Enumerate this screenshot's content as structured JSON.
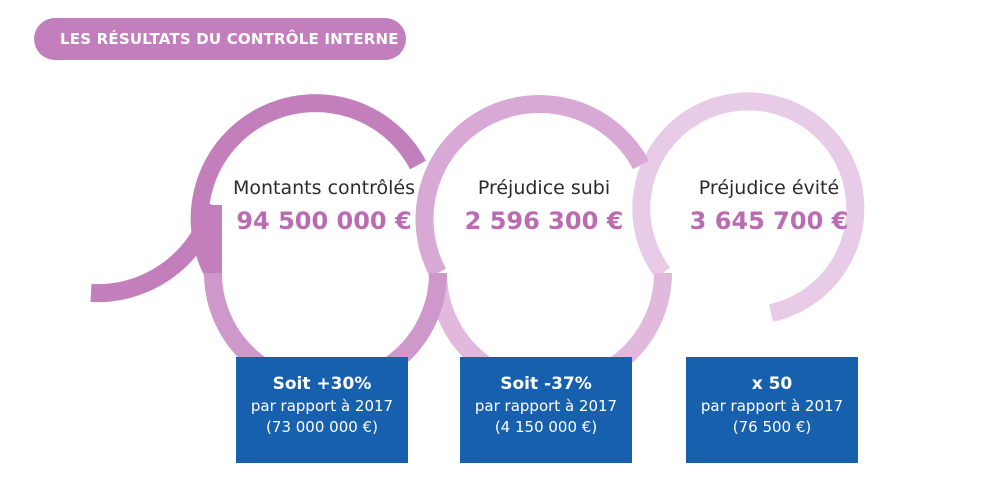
{
  "header": {
    "title": "LES RÉSULTATS DU CONTRÔLE INTERNE"
  },
  "colors": {
    "pill": "#c37fbd",
    "arc_1": "#c27fbc",
    "arc_2": "#d8a9d4",
    "arc_3": "#e8cbe6",
    "value_text": "#b96cb2",
    "box": "#1760ad"
  },
  "metrics": [
    {
      "label": "Montants contrôlés",
      "value": "94 500 000 €"
    },
    {
      "label": "Préjudice subi",
      "value": "2 596 300 €"
    },
    {
      "label": "Préjudice évité",
      "value": "3 645 700 €"
    }
  ],
  "comparisons": [
    {
      "main": "Soit +30%",
      "line1": "par rapport à 2017",
      "line2": "(73 000 000 €)"
    },
    {
      "main": "Soit -37%",
      "line1": "par rapport à 2017",
      "line2": "(4 150 000 €)"
    },
    {
      "main": "x 50",
      "line1": "par rapport à 2017",
      "line2": "(76 500 €)"
    }
  ]
}
